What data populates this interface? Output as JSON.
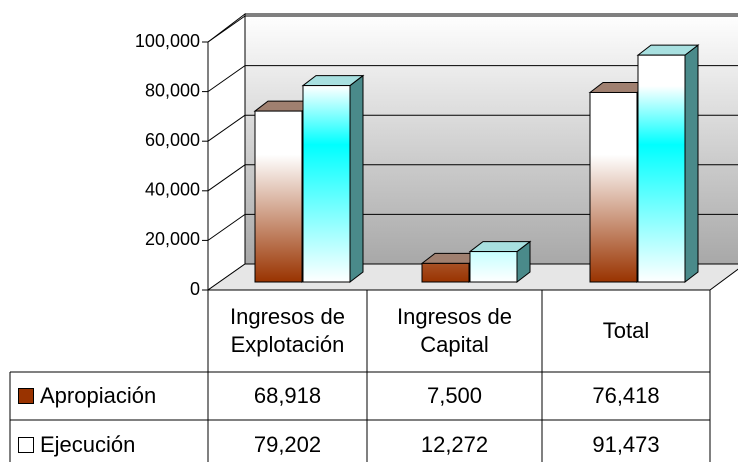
{
  "chart_data": {
    "type": "bar3d",
    "categories": [
      "Ingresos de Explotación",
      "Ingresos de Capital",
      "Total"
    ],
    "series": [
      {
        "name": "Apropiación",
        "color": "#993300",
        "values": [
          68918,
          7500,
          76418
        ],
        "value_labels": [
          "68,918",
          "7,500",
          "76,418"
        ]
      },
      {
        "name": "Ejecución",
        "color": "#ffffff",
        "values": [
          79202,
          12272,
          91473
        ],
        "value_labels": [
          "79,202",
          "12,272",
          "91,473"
        ]
      }
    ],
    "ylim": [
      0,
      100000
    ],
    "yticks": [
      0,
      {
        "value": 20000,
        "label": "20,000"
      },
      {
        "value": 40000,
        "label": "40,000"
      },
      {
        "value": 60000,
        "label": "60,000"
      },
      {
        "value": 80000,
        "label": "80,000"
      },
      {
        "value": 100000,
        "label": "100,000"
      }
    ],
    "grid": true
  }
}
